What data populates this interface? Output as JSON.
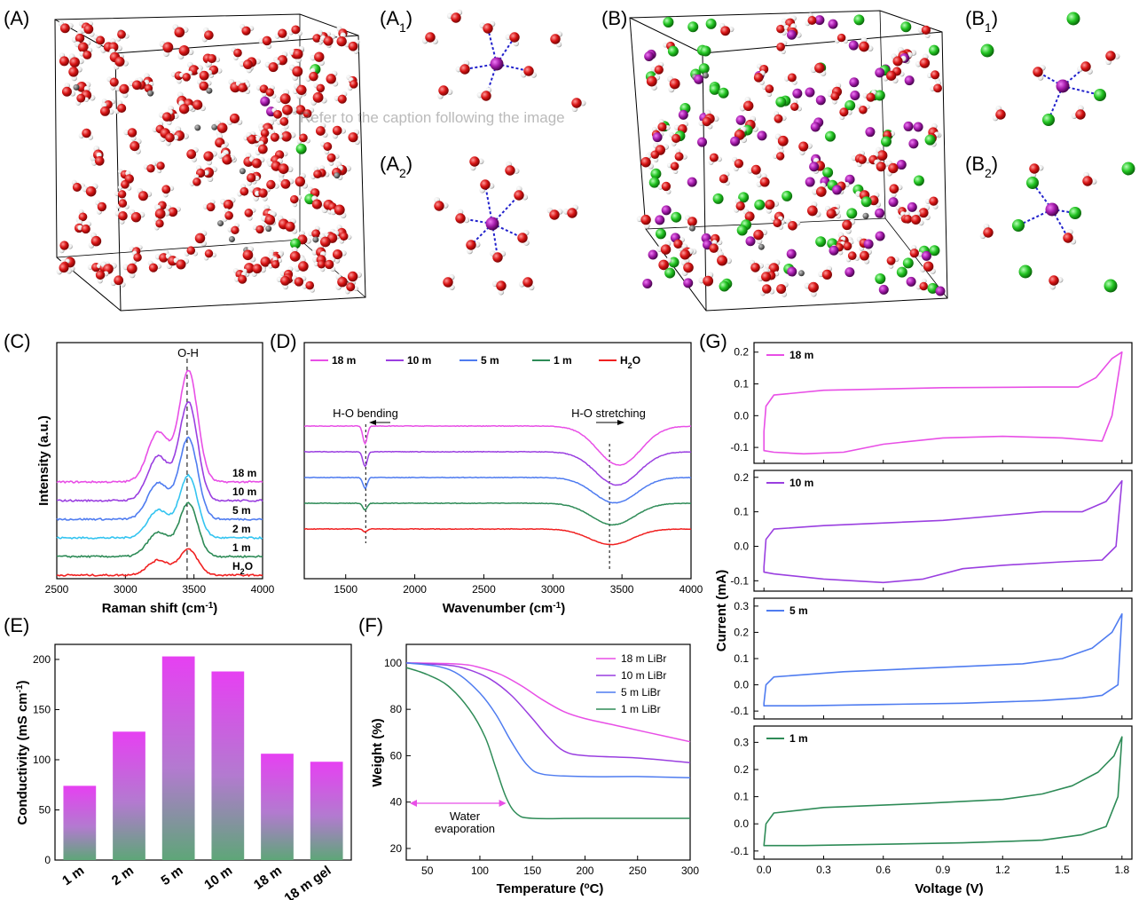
{
  "panel_labels": {
    "A": "(A)",
    "A1": "(A",
    "A1_sub": "1",
    "A1_close": ")",
    "A2": "(A",
    "A2_sub": "2",
    "A2_close": ")",
    "B": "(B)",
    "B1": "(B",
    "B1_sub": "1",
    "B1_close": ")",
    "B2": "(B",
    "B2_sub": "2",
    "B2_close": ")",
    "C": "(C)",
    "D": "(D)",
    "E": "(E)",
    "F": "(F)",
    "G": "(G)"
  },
  "watermark": "Refer to the caption following the image",
  "atom_colors": {
    "oxygen": "#d81414",
    "hydrogen": "#eeeeee",
    "lithium": "#a21aa8",
    "bromine": "#22c422",
    "carbon": "#707070",
    "bond": "#2222cc"
  },
  "chart_data": [
    {
      "panel": "C",
      "type": "line",
      "title": "",
      "peak_label": "O-H",
      "xlabel": "Raman shift (cm",
      "xlabel_sup": "-1",
      "xlabel_close": ")",
      "ylabel": "Intensity (a.u.)",
      "xlim": [
        2500,
        4000
      ],
      "xticks": [
        2500,
        3000,
        3500,
        4000
      ],
      "peak_line_x": 3450,
      "series": [
        {
          "name": "18 m",
          "color": "#e84fe6",
          "baseline": 6,
          "amplitude": 5.2
        },
        {
          "name": "10 m",
          "color": "#9a3fe0",
          "baseline": 5,
          "amplitude": 4.6
        },
        {
          "name": "5 m",
          "color": "#4f7cf0",
          "baseline": 4,
          "amplitude": 3.8
        },
        {
          "name": "2 m",
          "color": "#35c4f0",
          "baseline": 3,
          "amplitude": 2.9
        },
        {
          "name": "1 m",
          "color": "#2e8b57",
          "baseline": 2,
          "amplitude": 2.5
        },
        {
          "name": "H",
          "name_sub": "2",
          "name_end": "O",
          "color": "#f02020",
          "baseline": 1,
          "amplitude": 1.2
        }
      ]
    },
    {
      "panel": "D",
      "type": "line",
      "xlabel": "Wavenumber (cm",
      "xlabel_sup": "-1",
      "xlabel_close": ")",
      "xlim": [
        1200,
        4000
      ],
      "xticks": [
        1500,
        2000,
        2500,
        3000,
        3500,
        4000
      ],
      "annotations": [
        "H-O bending",
        "H-O stretching"
      ],
      "bend_line_x": 1645,
      "stretch_line_x": 3410,
      "series": [
        {
          "name": "18 m",
          "color": "#e84fe6",
          "baseline": 5
        },
        {
          "name": "10 m",
          "color": "#9a3fe0",
          "baseline": 4
        },
        {
          "name": "5 m",
          "color": "#4f7cf0",
          "baseline": 3
        },
        {
          "name": "1 m",
          "color": "#2e8b57",
          "baseline": 2
        },
        {
          "name": "H",
          "name_sub": "2",
          "name_end": "O",
          "color": "#f02020",
          "baseline": 1
        }
      ]
    },
    {
      "panel": "E",
      "type": "bar",
      "categories": [
        "1 m",
        "2 m",
        "5 m",
        "10 m",
        "18 m",
        "18 m gel"
      ],
      "values": [
        74,
        128,
        203,
        188,
        106,
        98
      ],
      "ylabel": "Conductivity (mS cm",
      "ylabel_sup": "-1",
      "ylabel_close": ")",
      "ylim": [
        0,
        215
      ],
      "yticks": [
        0,
        50,
        100,
        150,
        200
      ],
      "bar_color_top": "#e640f2",
      "bar_color_bottom": "#5ea678"
    },
    {
      "panel": "F",
      "type": "line",
      "xlabel": "Temperature (",
      "xlabel_sup": "o",
      "xlabel_close": "C)",
      "ylabel": "Weight (%)",
      "xlim": [
        30,
        300
      ],
      "ylim": [
        15,
        108
      ],
      "xticks": [
        50,
        100,
        150,
        200,
        250,
        300
      ],
      "yticks": [
        20,
        40,
        60,
        80,
        100
      ],
      "annotation": [
        "Water",
        "evaporation"
      ],
      "arrow_range": [
        30,
        125
      ],
      "series": [
        {
          "name": "18 m LiBr",
          "color": "#e84fe6",
          "x": [
            30,
            80,
            100,
            120,
            140,
            160,
            180,
            200,
            230,
            260,
            300
          ],
          "y": [
            100,
            99.5,
            98,
            95,
            90,
            84,
            79,
            76,
            73,
            70,
            66
          ]
        },
        {
          "name": "10 m LiBr",
          "color": "#9a3fe0",
          "x": [
            30,
            70,
            90,
            110,
            130,
            150,
            165,
            180,
            200,
            250,
            300
          ],
          "y": [
            100,
            99,
            97,
            93,
            86,
            76,
            68,
            62,
            60,
            59,
            57
          ]
        },
        {
          "name": "5 m LiBr",
          "color": "#4f7cf0",
          "x": [
            30,
            60,
            80,
            100,
            115,
            130,
            145,
            160,
            200,
            250,
            300
          ],
          "y": [
            100,
            98.5,
            95,
            87,
            78,
            66,
            56,
            52,
            51,
            51,
            50.5
          ]
        },
        {
          "name": "1 m LiBr",
          "color": "#2e8b57",
          "x": [
            30,
            50,
            70,
            90,
            105,
            115,
            125,
            135,
            150,
            200,
            300
          ],
          "y": [
            98,
            95,
            90,
            80,
            68,
            55,
            42,
            35,
            33,
            33,
            33
          ]
        }
      ]
    },
    {
      "panel": "G",
      "type": "line",
      "xlabel": "Voltage (V)",
      "ylabel": "Current (mA)",
      "xlim": [
        -0.05,
        1.85
      ],
      "xticks": [
        0.0,
        0.3,
        0.6,
        0.9,
        1.2,
        1.5,
        1.8
      ],
      "xtick_labels": [
        "0.0",
        "0.3",
        "0.6",
        "0.9",
        "1.2",
        "1.5",
        "1.8"
      ],
      "subplots": [
        {
          "name": "18 m",
          "color": "#e84fe6",
          "ylim": [
            -0.15,
            0.23
          ],
          "yticks": [
            -0.1,
            0.0,
            0.1,
            0.2
          ],
          "ytick_labels": [
            "-0.1",
            "0.0",
            "0.1",
            "0.2"
          ],
          "upper": {
            "x": [
              0.0,
              0.01,
              0.05,
              0.3,
              0.9,
              1.4,
              1.58,
              1.67,
              1.75,
              1.8
            ],
            "y": [
              -0.05,
              0.03,
              0.065,
              0.08,
              0.088,
              0.09,
              0.09,
              0.12,
              0.18,
              0.2
            ]
          },
          "lower": {
            "x": [
              1.8,
              1.75,
              1.7,
              1.5,
              1.2,
              0.9,
              0.6,
              0.4,
              0.2,
              0.05,
              0.0
            ],
            "y": [
              0.2,
              0.0,
              -0.08,
              -0.07,
              -0.065,
              -0.07,
              -0.09,
              -0.115,
              -0.12,
              -0.115,
              -0.11
            ]
          }
        },
        {
          "name": "10 m",
          "color": "#9a3fe0",
          "ylim": [
            -0.13,
            0.22
          ],
          "yticks": [
            -0.1,
            0.0,
            0.1,
            0.2
          ],
          "ytick_labels": [
            "-0.1",
            "0.0",
            "0.1",
            "0.2"
          ],
          "upper": {
            "x": [
              0.0,
              0.01,
              0.05,
              0.3,
              0.9,
              1.2,
              1.4,
              1.6,
              1.72,
              1.8
            ],
            "y": [
              -0.06,
              0.02,
              0.05,
              0.06,
              0.075,
              0.09,
              0.1,
              0.1,
              0.13,
              0.19
            ]
          },
          "lower": {
            "x": [
              1.8,
              1.77,
              1.7,
              1.5,
              1.2,
              1.0,
              0.8,
              0.6,
              0.3,
              0.05,
              0.0
            ],
            "y": [
              0.19,
              0.0,
              -0.04,
              -0.045,
              -0.055,
              -0.065,
              -0.095,
              -0.105,
              -0.095,
              -0.08,
              -0.075
            ]
          }
        },
        {
          "name": "5 m",
          "color": "#4f7cf0",
          "ylim": [
            -0.13,
            0.33
          ],
          "yticks": [
            -0.1,
            0.0,
            0.1,
            0.2,
            0.3
          ],
          "ytick_labels": [
            "-0.1",
            "0.0",
            "0.1",
            "0.2",
            "0.3"
          ],
          "upper": {
            "x": [
              0.0,
              0.01,
              0.05,
              0.4,
              1.0,
              1.3,
              1.5,
              1.65,
              1.75,
              1.8
            ],
            "y": [
              -0.07,
              0.0,
              0.03,
              0.05,
              0.07,
              0.08,
              0.1,
              0.14,
              0.2,
              0.27
            ]
          },
          "lower": {
            "x": [
              1.8,
              1.78,
              1.7,
              1.6,
              1.4,
              1.0,
              0.6,
              0.2,
              0.0
            ],
            "y": [
              0.27,
              0.0,
              -0.04,
              -0.05,
              -0.06,
              -0.07,
              -0.075,
              -0.08,
              -0.08
            ]
          }
        },
        {
          "name": "1 m",
          "color": "#2e8b57",
          "ylim": [
            -0.13,
            0.36
          ],
          "yticks": [
            -0.1,
            0.0,
            0.1,
            0.2,
            0.3
          ],
          "ytick_labels": [
            "-0.1",
            "0.0",
            "0.1",
            "0.2",
            "0.3"
          ],
          "upper": {
            "x": [
              0.0,
              0.01,
              0.05,
              0.3,
              0.8,
              1.2,
              1.4,
              1.55,
              1.68,
              1.76,
              1.8
            ],
            "y": [
              -0.08,
              0.0,
              0.04,
              0.06,
              0.075,
              0.09,
              0.11,
              0.14,
              0.19,
              0.25,
              0.32
            ]
          },
          "lower": {
            "x": [
              1.8,
              1.78,
              1.72,
              1.6,
              1.4,
              1.0,
              0.6,
              0.2,
              0.0
            ],
            "y": [
              0.32,
              0.1,
              -0.01,
              -0.04,
              -0.06,
              -0.07,
              -0.075,
              -0.08,
              -0.08
            ]
          }
        }
      ]
    }
  ]
}
